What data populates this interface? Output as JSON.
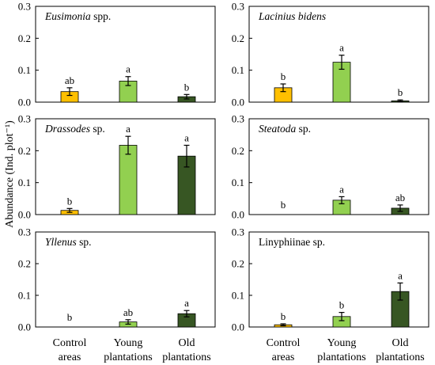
{
  "figure": {
    "ylabel": "Abundance (Ind. plot⁻¹)",
    "xcategories": [
      {
        "line1": "Control",
        "line2": "areas"
      },
      {
        "line1": "Young",
        "line2": "plantations"
      },
      {
        "line1": "Old",
        "line2": "plantations"
      }
    ]
  },
  "colors": {
    "control": "#FFC000",
    "young": "#92D050",
    "old": "#375623"
  },
  "chart_data": [
    {
      "type": "bar",
      "title_italic": "Eusimonia",
      "title_rest": " spp.",
      "categories": [
        "Control areas",
        "Young plantations",
        "Old plantations"
      ],
      "values": [
        0.033,
        0.066,
        0.017
      ],
      "errors": [
        0.012,
        0.014,
        0.007
      ],
      "letters": [
        "ab",
        "a",
        "b"
      ],
      "ylim": [
        0,
        0.3
      ],
      "yticks": [
        "0.0",
        "0.1",
        "0.2",
        "0.3"
      ]
    },
    {
      "type": "bar",
      "title_italic": "Lacinius bidens",
      "title_rest": "",
      "categories": [
        "Control areas",
        "Young plantations",
        "Old plantations"
      ],
      "values": [
        0.045,
        0.125,
        0.004
      ],
      "errors": [
        0.012,
        0.022,
        0.003
      ],
      "letters": [
        "b",
        "a",
        "b"
      ],
      "ylim": [
        0,
        0.3
      ],
      "yticks": [
        "0.0",
        "0.1",
        "0.2",
        "0.3"
      ]
    },
    {
      "type": "bar",
      "title_italic": "Drassodes",
      "title_rest": " sp.",
      "categories": [
        "Control areas",
        "Young plantations",
        "Old plantations"
      ],
      "values": [
        0.013,
        0.217,
        0.183
      ],
      "errors": [
        0.006,
        0.028,
        0.034
      ],
      "letters": [
        "b",
        "a",
        "a"
      ],
      "ylim": [
        0,
        0.3
      ],
      "yticks": [
        "0.0",
        "0.1",
        "0.2",
        "0.3"
      ]
    },
    {
      "type": "bar",
      "title_italic": "Steatoda",
      "title_rest": " sp.",
      "categories": [
        "Control areas",
        "Young plantations",
        "Old plantations"
      ],
      "values": [
        0,
        0.045,
        0.02
      ],
      "errors": [
        0,
        0.011,
        0.01
      ],
      "letters": [
        "b",
        "a",
        "ab"
      ],
      "ylim": [
        0,
        0.3
      ],
      "yticks": [
        "0.0",
        "0.1",
        "0.2",
        "0.3"
      ]
    },
    {
      "type": "bar",
      "title_italic": "Yllenus",
      "title_rest": " sp.",
      "categories": [
        "Control areas",
        "Young plantations",
        "Old plantations"
      ],
      "values": [
        0,
        0.016,
        0.042
      ],
      "errors": [
        0,
        0.007,
        0.01
      ],
      "letters": [
        "b",
        "ab",
        "a"
      ],
      "ylim": [
        0,
        0.3
      ],
      "yticks": [
        "0.0",
        "0.1",
        "0.2",
        "0.3"
      ]
    },
    {
      "type": "bar",
      "title_italic": "",
      "title_rest": "Linyphiinae sp.",
      "categories": [
        "Control areas",
        "Young plantations",
        "Old plantations"
      ],
      "values": [
        0.007,
        0.033,
        0.112
      ],
      "errors": [
        0.003,
        0.013,
        0.027
      ],
      "letters": [
        "b",
        "b",
        "a"
      ],
      "ylim": [
        0,
        0.3
      ],
      "yticks": [
        "0.0",
        "0.1",
        "0.2",
        "0.3"
      ]
    }
  ]
}
